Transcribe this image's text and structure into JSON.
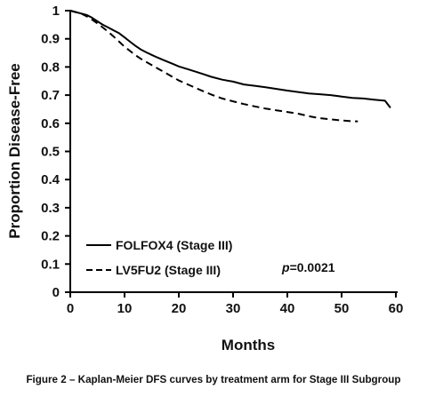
{
  "caption": "Figure 2 – Kaplan-Meier DFS curves by treatment arm for Stage III Subgroup",
  "chart_data": {
    "type": "line",
    "title": "",
    "xlabel": "Months",
    "ylabel": "Proportion Disease-Free",
    "xlim": [
      0,
      60
    ],
    "ylim": [
      0,
      1
    ],
    "xticks": [
      "0",
      "10",
      "20",
      "30",
      "40",
      "50",
      "60"
    ],
    "yticks": [
      "0",
      "0.1",
      "0.2",
      "0.3",
      "0.4",
      "0.5",
      "0.6",
      "0.7",
      "0.8",
      "0.9",
      "1"
    ],
    "grid": false,
    "legend_position": "bottom-left",
    "annotation_prefix": "p",
    "annotation_value": "=0.0021",
    "series": [
      {
        "name": "FOLFOX4 (Stage III)",
        "style": "solid",
        "color": "#000000",
        "x": [
          0,
          1,
          2,
          3,
          4,
          5,
          6,
          7,
          8,
          9,
          10,
          11,
          12,
          13,
          14,
          15,
          16,
          17,
          18,
          19,
          20,
          22,
          24,
          26,
          28,
          30,
          32,
          34,
          36,
          38,
          40,
          42,
          44,
          46,
          48,
          50,
          52,
          54,
          56,
          58,
          59
        ],
        "y": [
          1.0,
          0.995,
          0.99,
          0.985,
          0.975,
          0.962,
          0.95,
          0.94,
          0.93,
          0.92,
          0.905,
          0.89,
          0.875,
          0.862,
          0.852,
          0.843,
          0.834,
          0.826,
          0.818,
          0.81,
          0.802,
          0.79,
          0.778,
          0.765,
          0.755,
          0.748,
          0.738,
          0.733,
          0.728,
          0.722,
          0.716,
          0.711,
          0.706,
          0.703,
          0.7,
          0.695,
          0.69,
          0.688,
          0.684,
          0.68,
          0.655
        ]
      },
      {
        "name": "LV5FU2 (Stage III)",
        "style": "dashed",
        "color": "#000000",
        "x": [
          0,
          1,
          2,
          3,
          4,
          5,
          6,
          7,
          8,
          9,
          10,
          11,
          12,
          13,
          14,
          15,
          16,
          17,
          18,
          19,
          20,
          22,
          24,
          26,
          28,
          30,
          32,
          34,
          36,
          38,
          40,
          42,
          44,
          46,
          48,
          50,
          52,
          53
        ],
        "y": [
          1.0,
          0.995,
          0.99,
          0.98,
          0.968,
          0.955,
          0.94,
          0.925,
          0.908,
          0.89,
          0.872,
          0.857,
          0.842,
          0.829,
          0.818,
          0.807,
          0.796,
          0.785,
          0.774,
          0.763,
          0.752,
          0.735,
          0.718,
          0.702,
          0.688,
          0.678,
          0.668,
          0.66,
          0.652,
          0.646,
          0.64,
          0.634,
          0.625,
          0.618,
          0.614,
          0.61,
          0.607,
          0.607
        ]
      }
    ]
  }
}
